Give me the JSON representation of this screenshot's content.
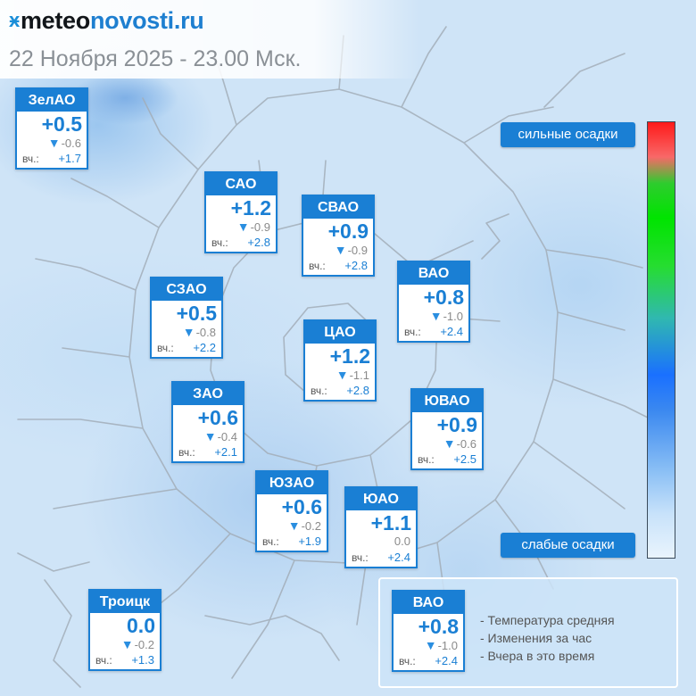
{
  "header": {
    "logo_mark": "ӿ",
    "logo_text_dark": "meteo",
    "logo_text_accent": "novosti",
    "logo_suffix": ".ru",
    "datetime": "22 Ноября 2025 - 23.00 Мск."
  },
  "districts": [
    {
      "name": "ЗелАО",
      "temp": "+0.5",
      "change": "-0.6",
      "yesterday_label": "вч.:",
      "yesterday": "+1.7"
    },
    {
      "name": "САО",
      "temp": "+1.2",
      "change": "-0.9",
      "yesterday_label": "вч.:",
      "yesterday": "+2.8"
    },
    {
      "name": "СВАО",
      "temp": "+0.9",
      "change": "-0.9",
      "yesterday_label": "вч.:",
      "yesterday": "+2.8"
    },
    {
      "name": "ВАО",
      "temp": "+0.8",
      "change": "-1.0",
      "yesterday_label": "вч.:",
      "yesterday": "+2.4"
    },
    {
      "name": "СЗАО",
      "temp": "+0.5",
      "change": "-0.8",
      "yesterday_label": "вч.:",
      "yesterday": "+2.2"
    },
    {
      "name": "ЦАО",
      "temp": "+1.2",
      "change": "-1.1",
      "yesterday_label": "вч.:",
      "yesterday": "+2.8"
    },
    {
      "name": "ЗАО",
      "temp": "+0.6",
      "change": "-0.4",
      "yesterday_label": "вч.:",
      "yesterday": "+2.1"
    },
    {
      "name": "ЮВАО",
      "temp": "+0.9",
      "change": "-0.6",
      "yesterday_label": "вч.:",
      "yesterday": "+2.5"
    },
    {
      "name": "ЮЗАО",
      "temp": "+0.6",
      "change": "-0.2",
      "yesterday_label": "вч.:",
      "yesterday": "+1.9"
    },
    {
      "name": "ЮАО",
      "temp": "+1.1",
      "change": "0.0",
      "yesterday_label": "вч.:",
      "yesterday": "+2.4"
    },
    {
      "name": "Троицк",
      "temp": "0.0",
      "change": "-0.2",
      "yesterday_label": "вч.:",
      "yesterday": "+1.3"
    }
  ],
  "precip_scale": {
    "top_label": "сильные осадки",
    "bottom_label": "слабые осадки"
  },
  "legend": {
    "sample": {
      "name": "ВАО",
      "temp": "+0.8",
      "change": "-1.0",
      "yesterday_label": "вч.:",
      "yesterday": "+2.4"
    },
    "lines": [
      "- Температура средняя",
      "- Изменения за час",
      "- Вчера в это время"
    ]
  },
  "colors": {
    "accent": "#1a7fd4",
    "down_arrow": "#2a8ee0"
  },
  "icons": {
    "change_down": "▼"
  }
}
